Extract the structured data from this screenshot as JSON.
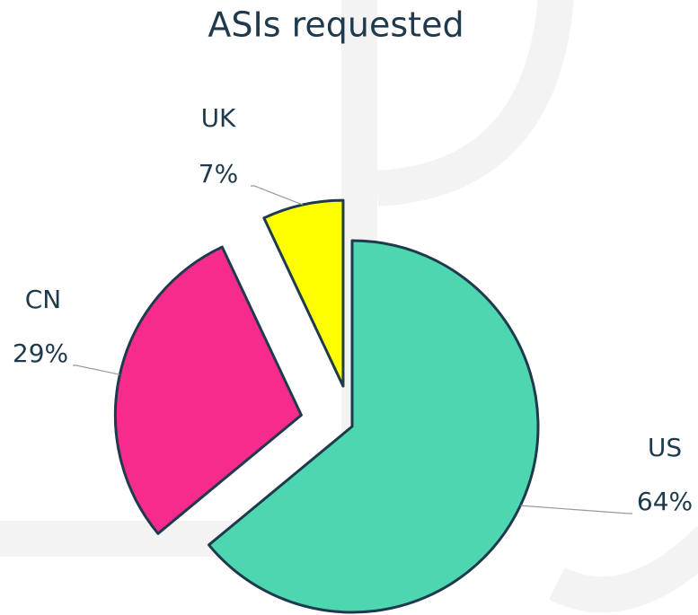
{
  "chart_data": {
    "type": "pie",
    "title": "ASIs requested",
    "categories": [
      "US",
      "CN",
      "UK"
    ],
    "values": [
      64,
      29,
      7
    ],
    "value_labels": [
      "64%",
      "29%",
      "7%"
    ],
    "colors": [
      "#4dd6b0",
      "#f72b8b",
      "#ffff00"
    ]
  }
}
